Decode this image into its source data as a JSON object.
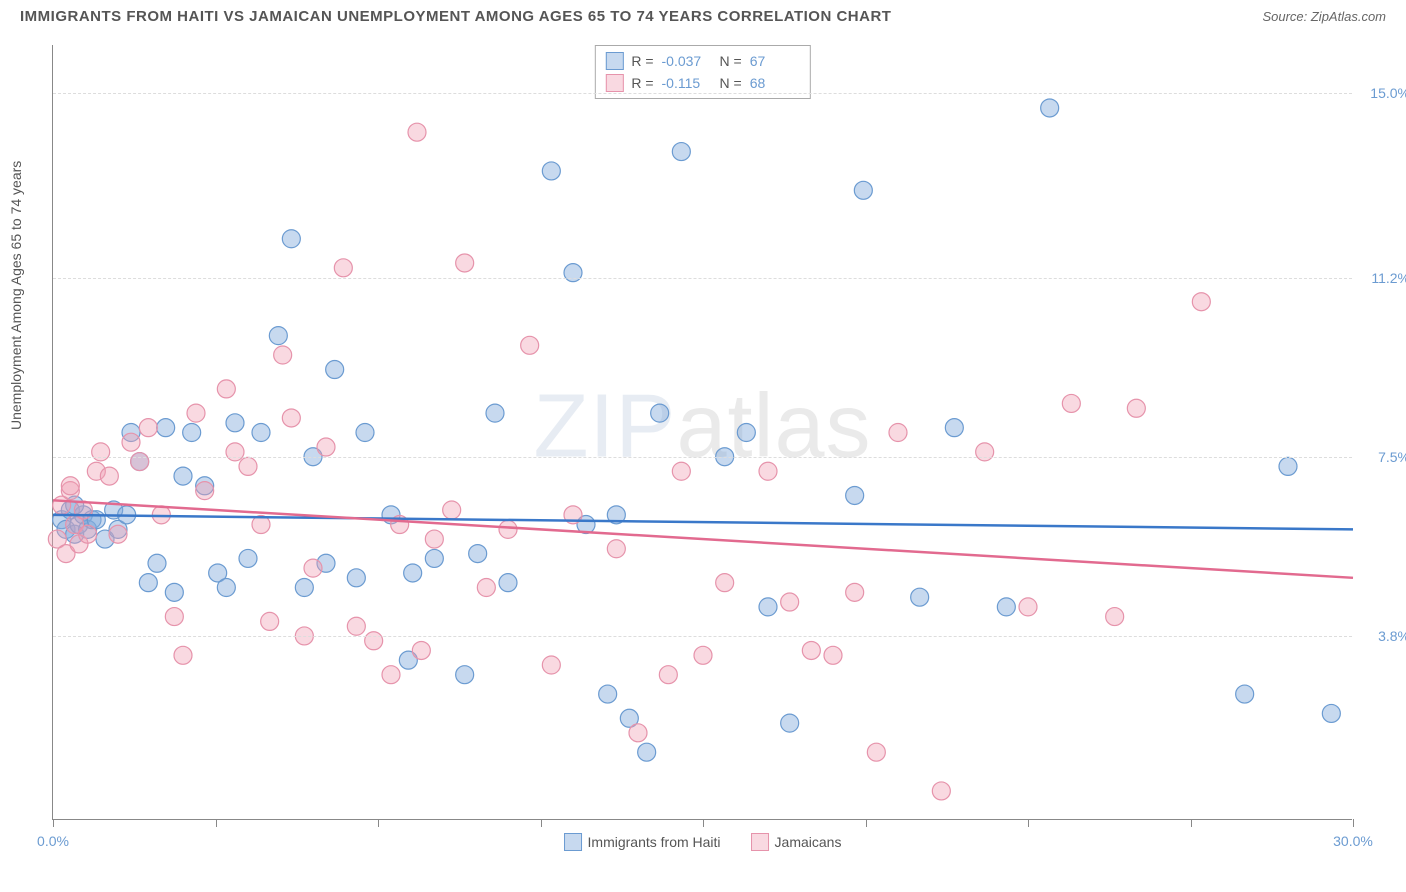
{
  "title": "IMMIGRANTS FROM HAITI VS JAMAICAN UNEMPLOYMENT AMONG AGES 65 TO 74 YEARS CORRELATION CHART",
  "source": "Source: ZipAtlas.com",
  "watermark": {
    "bold": "ZIP",
    "light": "atlas"
  },
  "chart": {
    "type": "scatter",
    "y_axis": {
      "label": "Unemployment Among Ages 65 to 74 years",
      "min": 0.0,
      "max": 16.0,
      "ticks": [
        3.8,
        7.5,
        11.2,
        15.0
      ],
      "tick_labels": [
        "3.8%",
        "7.5%",
        "11.2%",
        "15.0%"
      ],
      "label_fontsize": 14,
      "tick_color": "#6b9bd1"
    },
    "x_axis": {
      "min": 0.0,
      "max": 30.0,
      "tick_positions": [
        0,
        3.75,
        7.5,
        11.25,
        15.0,
        18.75,
        22.5,
        26.25,
        30.0
      ],
      "end_labels": {
        "left": "0.0%",
        "right": "30.0%"
      },
      "tick_color": "#6b9bd1"
    },
    "grid_color": "#dddddd",
    "background_color": "#ffffff",
    "border_color": "#888888",
    "series": [
      {
        "id": "haiti",
        "name": "Immigrants from Haiti",
        "color_fill": "rgba(130,170,220,0.45)",
        "color_stroke": "#6b9bd1",
        "marker_radius": 9,
        "R": "-0.037",
        "N": "67",
        "trend": {
          "y_at_x0": 6.3,
          "y_at_x30": 6.0,
          "color": "#3a78c9",
          "width": 2.5
        },
        "points": [
          [
            0.2,
            6.2
          ],
          [
            0.3,
            6.0
          ],
          [
            0.4,
            6.4
          ],
          [
            0.5,
            5.9
          ],
          [
            0.6,
            6.1
          ],
          [
            0.7,
            6.3
          ],
          [
            0.8,
            6.0
          ],
          [
            0.9,
            6.2
          ],
          [
            0.5,
            6.5
          ],
          [
            1.0,
            6.2
          ],
          [
            1.2,
            5.8
          ],
          [
            1.4,
            6.4
          ],
          [
            1.5,
            6.0
          ],
          [
            1.7,
            6.3
          ],
          [
            1.8,
            8.0
          ],
          [
            2.0,
            7.4
          ],
          [
            2.2,
            4.9
          ],
          [
            2.4,
            5.3
          ],
          [
            2.6,
            8.1
          ],
          [
            2.8,
            4.7
          ],
          [
            3.0,
            7.1
          ],
          [
            3.2,
            8.0
          ],
          [
            3.5,
            6.9
          ],
          [
            3.8,
            5.1
          ],
          [
            4.0,
            4.8
          ],
          [
            4.2,
            8.2
          ],
          [
            4.5,
            5.4
          ],
          [
            4.8,
            8.0
          ],
          [
            5.2,
            10.0
          ],
          [
            5.5,
            12.0
          ],
          [
            5.8,
            4.8
          ],
          [
            6.0,
            7.5
          ],
          [
            6.3,
            5.3
          ],
          [
            6.5,
            9.3
          ],
          [
            7.0,
            5.0
          ],
          [
            7.2,
            8.0
          ],
          [
            7.8,
            6.3
          ],
          [
            8.2,
            3.3
          ],
          [
            8.3,
            5.1
          ],
          [
            8.8,
            5.4
          ],
          [
            9.5,
            3.0
          ],
          [
            9.8,
            5.5
          ],
          [
            10.2,
            8.4
          ],
          [
            10.5,
            4.9
          ],
          [
            11.5,
            13.4
          ],
          [
            12.0,
            11.3
          ],
          [
            12.3,
            6.1
          ],
          [
            12.8,
            2.6
          ],
          [
            13.0,
            6.3
          ],
          [
            13.3,
            2.1
          ],
          [
            13.7,
            1.4
          ],
          [
            14.0,
            8.4
          ],
          [
            14.5,
            13.8
          ],
          [
            15.5,
            7.5
          ],
          [
            16.0,
            8.0
          ],
          [
            16.5,
            4.4
          ],
          [
            17.0,
            2.0
          ],
          [
            18.5,
            6.7
          ],
          [
            18.7,
            13.0
          ],
          [
            20.0,
            4.6
          ],
          [
            20.8,
            8.1
          ],
          [
            22.0,
            4.4
          ],
          [
            23.0,
            14.7
          ],
          [
            27.5,
            2.6
          ],
          [
            28.5,
            7.3
          ],
          [
            29.5,
            2.2
          ]
        ]
      },
      {
        "id": "jamaican",
        "name": "Jamaicans",
        "color_fill": "rgba(240,160,180,0.40)",
        "color_stroke": "#e693ab",
        "marker_radius": 9,
        "R": "-0.115",
        "N": "68",
        "trend": {
          "y_at_x0": 6.6,
          "y_at_x30": 5.0,
          "color": "#e26a8f",
          "width": 2.5
        },
        "points": [
          [
            0.1,
            5.8
          ],
          [
            0.2,
            6.5
          ],
          [
            0.3,
            5.5
          ],
          [
            0.4,
            6.8
          ],
          [
            0.5,
            6.1
          ],
          [
            0.6,
            5.7
          ],
          [
            0.7,
            6.4
          ],
          [
            0.8,
            5.9
          ],
          [
            0.4,
            6.9
          ],
          [
            1.0,
            7.2
          ],
          [
            1.1,
            7.6
          ],
          [
            1.3,
            7.1
          ],
          [
            1.5,
            5.9
          ],
          [
            1.8,
            7.8
          ],
          [
            2.0,
            7.4
          ],
          [
            2.2,
            8.1
          ],
          [
            2.5,
            6.3
          ],
          [
            2.8,
            4.2
          ],
          [
            3.0,
            3.4
          ],
          [
            3.3,
            8.4
          ],
          [
            3.5,
            6.8
          ],
          [
            4.0,
            8.9
          ],
          [
            4.2,
            7.6
          ],
          [
            4.5,
            7.3
          ],
          [
            4.8,
            6.1
          ],
          [
            5.0,
            4.1
          ],
          [
            5.3,
            9.6
          ],
          [
            5.5,
            8.3
          ],
          [
            5.8,
            3.8
          ],
          [
            6.0,
            5.2
          ],
          [
            6.3,
            7.7
          ],
          [
            6.7,
            11.4
          ],
          [
            7.0,
            4.0
          ],
          [
            7.4,
            3.7
          ],
          [
            7.8,
            3.0
          ],
          [
            8.0,
            6.1
          ],
          [
            8.4,
            14.2
          ],
          [
            8.5,
            3.5
          ],
          [
            8.8,
            5.8
          ],
          [
            9.2,
            6.4
          ],
          [
            9.5,
            11.5
          ],
          [
            10.0,
            4.8
          ],
          [
            10.5,
            6.0
          ],
          [
            11.0,
            9.8
          ],
          [
            11.5,
            3.2
          ],
          [
            12.0,
            6.3
          ],
          [
            13.0,
            5.6
          ],
          [
            13.5,
            1.8
          ],
          [
            14.2,
            3.0
          ],
          [
            14.5,
            7.2
          ],
          [
            15.0,
            3.4
          ],
          [
            15.5,
            4.9
          ],
          [
            16.5,
            7.2
          ],
          [
            17.0,
            4.5
          ],
          [
            17.5,
            3.5
          ],
          [
            18.0,
            3.4
          ],
          [
            18.5,
            4.7
          ],
          [
            19.0,
            1.4
          ],
          [
            19.5,
            8.0
          ],
          [
            20.5,
            0.6
          ],
          [
            21.5,
            7.6
          ],
          [
            22.5,
            4.4
          ],
          [
            23.5,
            8.6
          ],
          [
            24.5,
            4.2
          ],
          [
            25.0,
            8.5
          ],
          [
            26.5,
            10.7
          ]
        ]
      }
    ]
  },
  "legend_top": {
    "R_label": "R =",
    "N_label": "N ="
  },
  "legend_bottom_items": [
    "Immigrants from Haiti",
    "Jamaicans"
  ]
}
